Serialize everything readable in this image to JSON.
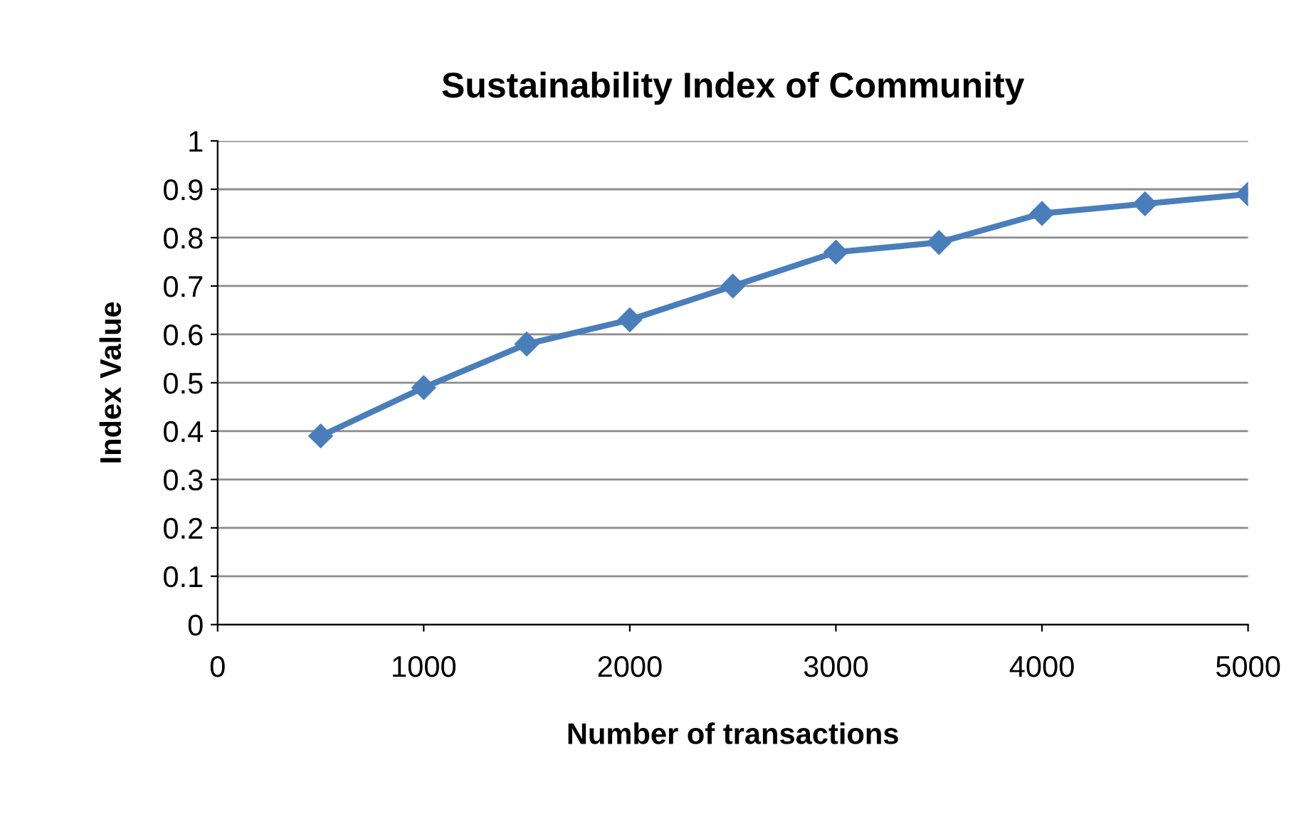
{
  "chart_data": {
    "type": "line",
    "title": "Sustainability Index of Community",
    "xlabel": "Number of transactions",
    "ylabel": "Index Value",
    "x": [
      500,
      1000,
      1500,
      2000,
      2500,
      3000,
      3500,
      4000,
      4500,
      5000
    ],
    "series": [
      {
        "color": "#4a7ebb",
        "values": [
          0.39,
          0.49,
          0.58,
          0.63,
          0.7,
          0.77,
          0.79,
          0.85,
          0.87,
          0.89
        ]
      }
    ],
    "xlim": [
      0,
      5000
    ],
    "xticks": [
      0,
      1000,
      2000,
      3000,
      4000,
      5000
    ],
    "ylim": [
      0,
      1
    ],
    "yticks": [
      0,
      0.1,
      0.2,
      0.3,
      0.4,
      0.5,
      0.6,
      0.7,
      0.8,
      0.9,
      1
    ],
    "grid": "y",
    "marker": "diamond",
    "line_style": "solid",
    "legend": false
  }
}
